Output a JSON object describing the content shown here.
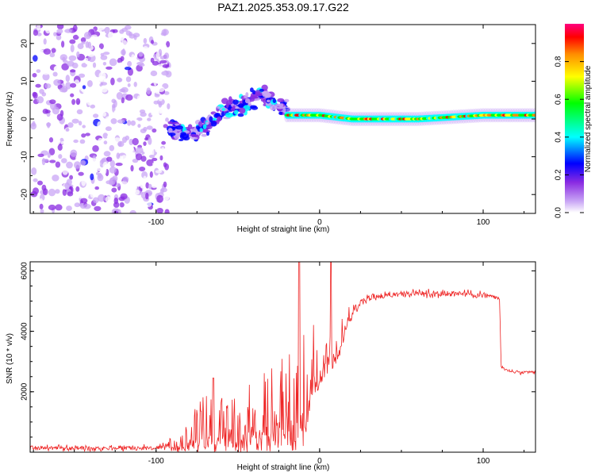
{
  "title": "PAZ1.2025.353.09.17.G22",
  "chart_data": [
    {
      "type": "heatmap",
      "name": "spectrogram",
      "xlabel": "Height of straight line (km)",
      "ylabel": "Frequency (Hz)",
      "xlim": [
        -177,
        132
      ],
      "ylim": [
        -25,
        25
      ],
      "x_ticks": [
        -100,
        0,
        100
      ],
      "y_ticks": [
        -20,
        -10,
        0,
        10,
        20
      ],
      "colorbar": {
        "label": "Normalized spectral amplitude",
        "range": [
          0.0,
          1.0
        ],
        "ticks": [
          0.0,
          0.2,
          0.4,
          0.6,
          0.8
        ],
        "tick_labels": [
          "0.0",
          "0.2",
          "0.4",
          "0.6",
          "0.8"
        ],
        "colormap": [
          "#ffffff",
          "#c9a6f5",
          "#8a2be2",
          "#0000ff",
          "#00ffff",
          "#00ff00",
          "#ffff00",
          "#ff8c00",
          "#ff0000",
          "#ff007f"
        ]
      },
      "segments": [
        {
          "region": "noise",
          "x_range": [
            -175,
            -92
          ],
          "freq_range": [
            -25,
            25
          ],
          "amplitude": "0.0-0.3"
        },
        {
          "region": "onset",
          "x_range": [
            -92,
            -20
          ],
          "center_freq": [
            [
              -92,
              -3
            ],
            [
              -80,
              -4
            ],
            [
              -70,
              -2
            ],
            [
              -60,
              2
            ],
            [
              -45,
              4
            ],
            [
              -35,
              7
            ],
            [
              -25,
              3
            ]
          ],
          "amplitude": "0.2-0.5"
        },
        {
          "region": "strong_line",
          "x_range": [
            -20,
            132
          ],
          "center_freq": [
            [
              -20,
              1
            ],
            [
              0,
              1
            ],
            [
              20,
              0
            ],
            [
              60,
              0
            ],
            [
              100,
              1
            ],
            [
              132,
              1
            ]
          ],
          "amplitude": "0.4-0.95"
        }
      ]
    },
    {
      "type": "line",
      "name": "snr",
      "xlabel": "Height of straight line (km)",
      "ylabel": "SNR (10 * v/v)",
      "xlim": [
        -177,
        132
      ],
      "ylim": [
        0,
        6300
      ],
      "x_ticks": [
        -100,
        0,
        100
      ],
      "y_ticks": [
        2000,
        4000,
        6000
      ],
      "color": "#ee2222",
      "series": [
        {
          "name": "SNR",
          "x": [
            -177,
            -150,
            -120,
            -100,
            -88,
            -80,
            -70,
            -60,
            -50,
            -40,
            -30,
            -20,
            -12,
            -8,
            -4,
            0,
            4,
            8,
            12,
            16,
            20,
            25,
            30,
            40,
            50,
            60,
            70,
            80,
            90,
            100,
            105,
            110,
            111,
            115,
            120,
            125,
            132
          ],
          "value": [
            150,
            130,
            150,
            140,
            200,
            500,
            800,
            900,
            1000,
            1200,
            1400,
            1600,
            1800,
            2300,
            2900,
            3200,
            3400,
            3600,
            3800,
            4300,
            4700,
            4950,
            5100,
            5200,
            5250,
            5250,
            5250,
            5250,
            5250,
            5200,
            5150,
            5100,
            2800,
            2700,
            2650,
            2620,
            2650
          ],
          "spread": [
            150,
            150,
            150,
            150,
            300,
            700,
            1000,
            900,
            1000,
            1200,
            1500,
            1800,
            2000,
            1800,
            1400,
            1000,
            900,
            900,
            700,
            400,
            300,
            200,
            200,
            200,
            200,
            200,
            200,
            200,
            200,
            200,
            150,
            150,
            100,
            100,
            100,
            100,
            100
          ],
          "peaks": [
            {
              "x": -12.5,
              "value": 6400
            },
            {
              "x": 7,
              "value": 6400
            },
            {
              "x": -65,
              "value": 2450
            }
          ]
        }
      ]
    }
  ]
}
